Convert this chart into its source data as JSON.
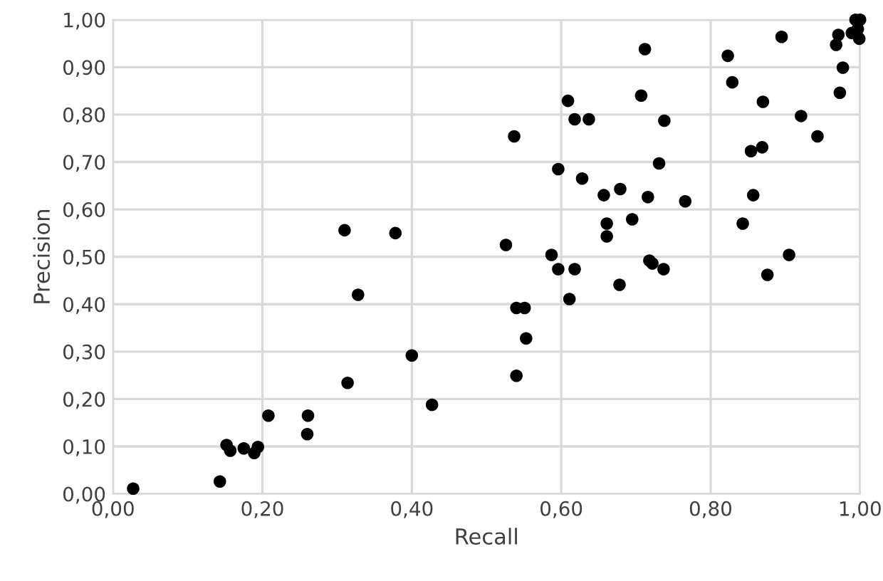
{
  "chart_data": {
    "type": "scatter",
    "xlabel": "Recall",
    "ylabel": "Precision",
    "x": [
      0.027,
      0.143,
      0.152,
      0.157,
      0.175,
      0.189,
      0.194,
      0.208,
      0.261,
      0.26,
      0.31,
      0.314,
      0.328,
      0.378,
      0.4,
      0.427,
      0.526,
      0.54,
      0.551,
      0.553,
      0.54,
      0.587,
      0.596,
      0.618,
      0.611,
      0.661,
      0.661,
      0.695,
      0.678,
      0.718,
      0.722,
      0.737,
      0.537,
      0.596,
      0.609,
      0.618,
      0.637,
      0.628,
      0.657,
      0.679,
      0.716,
      0.731,
      0.712,
      0.707,
      0.738,
      0.766,
      0.823,
      0.829,
      0.895,
      0.87,
      0.921,
      0.943,
      0.854,
      0.869,
      0.977,
      0.973,
      0.857,
      0.843,
      0.905,
      0.876,
      0.994,
      1.0,
      0.971,
      0.989,
      0.999,
      0.968,
      0.997
    ],
    "values": [
      0.011,
      0.026,
      0.103,
      0.091,
      0.096,
      0.086,
      0.099,
      0.165,
      0.165,
      0.126,
      0.556,
      0.234,
      0.42,
      0.55,
      0.292,
      0.188,
      0.525,
      0.392,
      0.392,
      0.328,
      0.249,
      0.504,
      0.474,
      0.474,
      0.411,
      0.57,
      0.543,
      0.579,
      0.441,
      0.492,
      0.486,
      0.474,
      0.754,
      0.685,
      0.829,
      0.79,
      0.79,
      0.665,
      0.63,
      0.643,
      0.626,
      0.697,
      0.938,
      0.84,
      0.787,
      0.617,
      0.924,
      0.868,
      0.964,
      0.827,
      0.797,
      0.754,
      0.723,
      0.731,
      0.899,
      0.846,
      0.63,
      0.57,
      0.504,
      0.462,
      1.0,
      1.0,
      0.968,
      0.972,
      0.96,
      0.947,
      0.98
    ],
    "color": "#000000",
    "marker": "circle",
    "grid": true,
    "xlim": [
      0,
      1
    ],
    "ylim": [
      0,
      1
    ],
    "xticks": [
      {
        "value": 0,
        "label": "0,00"
      },
      {
        "value": 0.2,
        "label": "0,20"
      },
      {
        "value": 0.4,
        "label": "0,40"
      },
      {
        "value": 0.6,
        "label": "0,60"
      },
      {
        "value": 0.8,
        "label": "0,80"
      },
      {
        "value": 1,
        "label": "1,00"
      }
    ],
    "yticks": [
      {
        "value": 0,
        "label": "0,00"
      },
      {
        "value": 0.1,
        "label": "0,10"
      },
      {
        "value": 0.2,
        "label": "0,20"
      },
      {
        "value": 0.3,
        "label": "0,30"
      },
      {
        "value": 0.4,
        "label": "0,40"
      },
      {
        "value": 0.5,
        "label": "0,50"
      },
      {
        "value": 0.6,
        "label": "0,60"
      },
      {
        "value": 0.7,
        "label": "0,70"
      },
      {
        "value": 0.8,
        "label": "0,80"
      },
      {
        "value": 0.9,
        "label": "0,90"
      },
      {
        "value": 1,
        "label": "1,00"
      }
    ]
  }
}
